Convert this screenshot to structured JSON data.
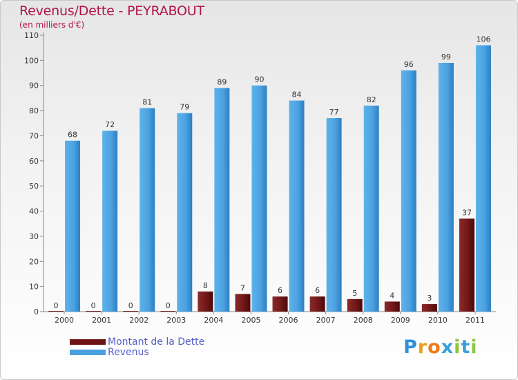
{
  "title": "Revenus/Dette - PEYRABOUT",
  "unit": "(en milliers d'€)",
  "colors": {
    "debt": "#7a1c1c",
    "revenue": "#4a9fde",
    "title": "#b01446",
    "legend_text": "#5560c8"
  },
  "legend": [
    {
      "label": "Montant de la Dette",
      "color": "#6e1414"
    },
    {
      "label": "Revenus",
      "color": "#4a9fde"
    }
  ],
  "logo": {
    "text": "Proxiti"
  },
  "chart_data": {
    "type": "bar",
    "categories": [
      "2000",
      "2001",
      "2002",
      "2003",
      "2004",
      "2005",
      "2006",
      "2007",
      "2008",
      "2009",
      "2010",
      "2011"
    ],
    "series": [
      {
        "name": "Montant de la Dette",
        "values": [
          0,
          0,
          0,
          0,
          8,
          7,
          6,
          6,
          5,
          4,
          3,
          37
        ]
      },
      {
        "name": "Revenus",
        "values": [
          68,
          72,
          81,
          79,
          89,
          90,
          84,
          77,
          82,
          96,
          99,
          106
        ]
      }
    ],
    "y_ticks": [
      0,
      10,
      20,
      30,
      40,
      50,
      60,
      70,
      80,
      90,
      100,
      110
    ],
    "ylim": [
      0,
      110
    ],
    "grid": false,
    "legend_position": "bottom-left"
  }
}
